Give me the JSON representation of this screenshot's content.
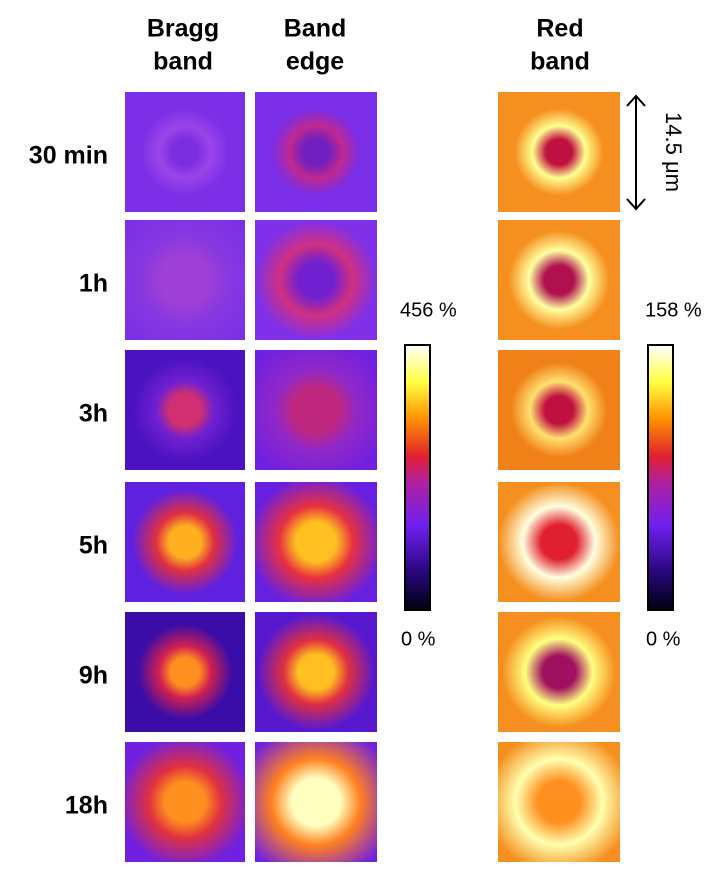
{
  "columns": [
    {
      "lines": [
        "Bragg",
        "band"
      ]
    },
    {
      "lines": [
        "Band",
        "edge"
      ]
    },
    {
      "lines": [
        "Red",
        "band"
      ]
    }
  ],
  "rows": [
    "30 min",
    "1h",
    "3h",
    "5h",
    "9h",
    "18h"
  ],
  "colorbars": [
    {
      "max": "456 %",
      "min": "0 %"
    },
    {
      "max": "158 %",
      "min": "0 %"
    }
  ],
  "scale_bar": "14.5 μm"
}
